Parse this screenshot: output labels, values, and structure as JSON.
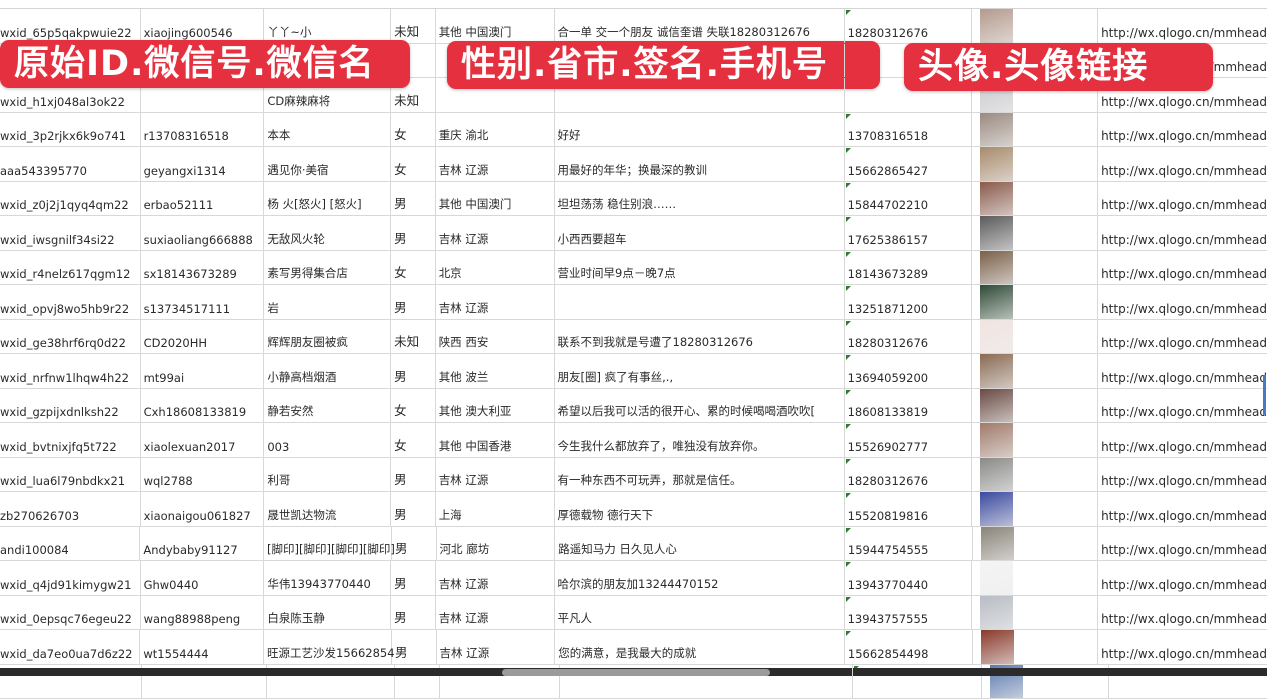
{
  "overlay_labels": [
    "原始ID.微信号.微信名",
    "性别.省市.签名.手机号",
    "头像.头像链接"
  ],
  "rows": [
    {
      "id": "wxid_65p5qakpwuie22",
      "wechat": "xiaojing600546",
      "name": "丫丫~小",
      "gender": "未知",
      "region": "其他 中国澳门",
      "signature": "合一单 交一个朋友 诚信奎谱 失联18280312676",
      "phone": "18280312676",
      "avatar_color": "#b59a8c",
      "url": "http://wx.qlogo.cn/mmhead"
    },
    {
      "id": "",
      "wechat": "",
      "name": "",
      "gender": "",
      "region": "",
      "signature": "",
      "phone": "",
      "avatar_color": "#6f7fa8",
      "url": "http://wx.qlogo.cn/mmhead"
    },
    {
      "id": "wxid_h1xj048al3ok22",
      "wechat": "",
      "name": "CD麻辣麻将",
      "gender": "未知",
      "region": "",
      "signature": "",
      "phone": "",
      "avatar_color": "#c9c9cf",
      "url": "http://wx.qlogo.cn/mmhead"
    },
    {
      "id": "wxid_3p2rjkx6k9o741",
      "wechat": "r13708316518",
      "name": "本本",
      "gender": "女",
      "region": "重庆 渝北",
      "signature": "好好",
      "phone": "13708316518",
      "avatar_color": "#9a8a80",
      "url": "http://wx.qlogo.cn/mmhead"
    },
    {
      "id": "aaa543395770",
      "wechat": "geyangxi1314",
      "name": "遇见你·美宿",
      "gender": "女",
      "region": "吉林 辽源",
      "signature": "用最好的年华；换最深的教训",
      "phone": "15662865427",
      "avatar_color": "#a88a6a",
      "url": "http://wx.qlogo.cn/mmhead"
    },
    {
      "id": "wxid_z0j2j1qyq4qm22",
      "wechat": "erbao52111",
      "name": "杨 火[怒火] [怒火]",
      "gender": "男",
      "region": "其他 中国澳门",
      "signature": "坦坦荡荡 稳住别浪……",
      "phone": "15844702210",
      "avatar_color": "#8a5a4a",
      "url": "http://wx.qlogo.cn/mmhead"
    },
    {
      "id": "wxid_iwsgnilf34si22",
      "wechat": "suxiaoliang666888",
      "name": "无敌风火轮",
      "gender": "男",
      "region": "吉林 辽源",
      "signature": "小西西要超车",
      "phone": "17625386157",
      "avatar_color": "#5a5a5a",
      "url": "http://wx.qlogo.cn/mmhead"
    },
    {
      "id": "wxid_r4nelz617qgm12",
      "wechat": "sx18143673289",
      "name": "素写男得集合店",
      "gender": "女",
      "region": "北京",
      "signature": "营业时间早9点－晚7点",
      "phone": "18143673289",
      "avatar_color": "#7a6048",
      "url": "http://wx.qlogo.cn/mmhead"
    },
    {
      "id": "wxid_opvj8wo5hb9r22",
      "wechat": "s13734517111",
      "name": "岩",
      "gender": "男",
      "region": "吉林 辽源",
      "signature": "",
      "phone": "13251871200",
      "avatar_color": "#2f4a36",
      "url": "http://wx.qlogo.cn/mmhead"
    },
    {
      "id": "wxid_ge38hrf6rq0d22",
      "wechat": "CD2020HH",
      "name": "辉辉朋友圈被疯",
      "gender": "未知",
      "region": "陕西 西安",
      "signature": "联系不到我就是号遭了18280312676",
      "phone": "18280312676",
      "avatar_color": "#f1e4e0",
      "url": "http://wx.qlogo.cn/mmhead"
    },
    {
      "id": "wxid_nrfnw1lhqw4h22",
      "wechat": "mt99ai",
      "name": "小静高档烟酒",
      "gender": "男",
      "region": "其他 波兰",
      "signature": "朋友[圈] 疯了有事丝,.,",
      "phone": "13694059200",
      "avatar_color": "#8a6a52",
      "url": "http://wx.qlogo.cn/mmhead"
    },
    {
      "id": "wxid_gzpijxdnlksh22",
      "wechat": "Cxh18608133819",
      "name": "静若安然",
      "gender": "女",
      "region": "其他 澳大利亚",
      "signature": "希望以后我可以活的很开心、累的时候喝喝酒吹吹[",
      "phone": "18608133819",
      "avatar_color": "#6a4a42",
      "url": "http://wx.qlogo.cn/mmhead"
    },
    {
      "id": "wxid_bvtnixjfq5t722",
      "wechat": "xiaolexuan2017",
      "name": "003",
      "gender": "女",
      "region": "其他 中国香港",
      "signature": "今生我什么都放弃了，唯独没有放弃你。",
      "phone": "15526902777",
      "avatar_color": "#a07a6a",
      "url": "http://wx.qlogo.cn/mmhead"
    },
    {
      "id": "wxid_lua6l79nbdkx21",
      "wechat": "wql2788",
      "name": "利哥",
      "gender": "男",
      "region": "吉林 辽源",
      "signature": "有一种东西不可玩弄，那就是信任。",
      "phone": "18280312676",
      "avatar_color": "#8a8a88",
      "url": "http://wx.qlogo.cn/mmhead"
    },
    {
      "id": "zb270626703",
      "wechat": "xiaonaigou061827",
      "name": "晟世凯达物流",
      "gender": "男",
      "region": "上海",
      "signature": "厚德载物 德行天下",
      "phone": "15520819816",
      "avatar_color": "#3a4aa0",
      "url": "http://wx.qlogo.cn/mmhead"
    },
    {
      "id": "andi100084",
      "wechat": "Andybaby91127",
      "name": "[脚印][脚印][脚印][脚印]",
      "gender": "男",
      "region": "河北 廊坊",
      "signature": "路遥知马力 日久见人心",
      "phone": "15944754555",
      "avatar_color": "#8a8478",
      "url": "http://wx.qlogo.cn/mmhead"
    },
    {
      "id": "wxid_q4jd91kimygw21",
      "wechat": "Ghw0440",
      "name": "华伟13943770440",
      "gender": "男",
      "region": "吉林 辽源",
      "signature": "哈尔滨的朋友加13244470152",
      "phone": "13943770440",
      "avatar_color": "#f4f4f4",
      "url": "http://wx.qlogo.cn/mmhead"
    },
    {
      "id": "wxid_0epsqc76egeu22",
      "wechat": "wang88988peng",
      "name": "白泉陈玉静",
      "gender": "男",
      "region": "吉林 辽源",
      "signature": "平凡人",
      "phone": "13943757555",
      "avatar_color": "#b8bcc4",
      "url": "http://wx.qlogo.cn/mmhead"
    },
    {
      "id": "wxid_da7eo0ua7d6z22",
      "wechat": "wt1554444",
      "name": "旺源工艺沙发15662854",
      "gender": "男",
      "region": "吉林 辽源",
      "signature": "您的满意，是我最大的成就",
      "phone": "15662854498",
      "avatar_color": "#8a3a2a",
      "url": "http://wx.qlogo.cn/mmhead"
    },
    {
      "id": "",
      "wechat": "",
      "name": "",
      "gender": "",
      "region": "",
      "signature": "",
      "phone": "",
      "avatar_color": "#5a7ab0",
      "url": ""
    }
  ]
}
